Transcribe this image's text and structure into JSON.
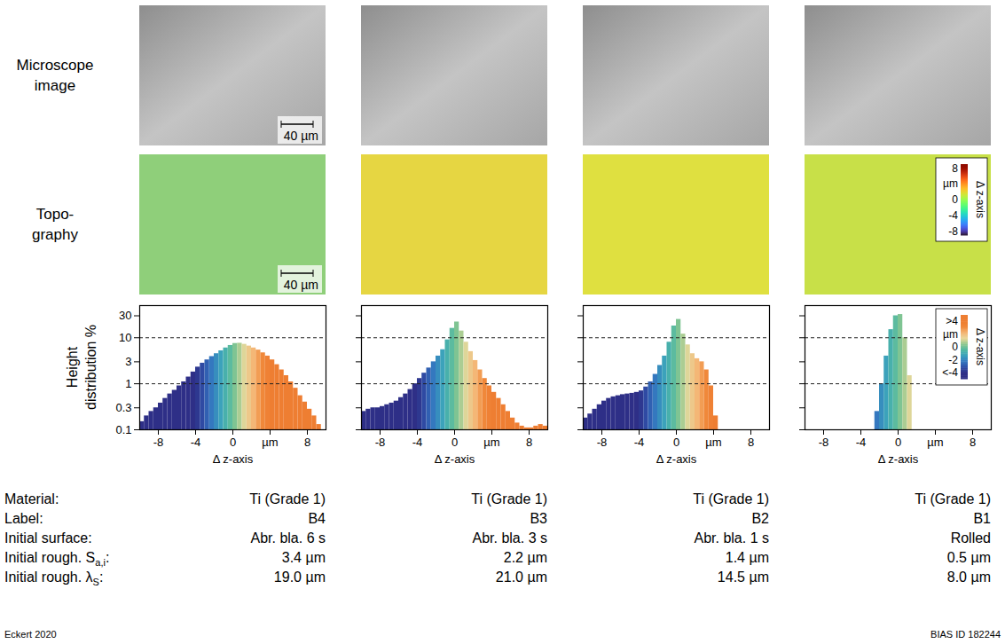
{
  "chart_data": [
    {
      "type": "histogram",
      "label": "B4",
      "bins": [
        -10,
        -9.5,
        -9,
        -8.5,
        -8,
        -7.5,
        -7,
        -6.5,
        -6,
        -5.5,
        -5,
        -4.5,
        -4,
        -3.5,
        -3,
        -2.5,
        -2,
        -1.5,
        -1,
        -0.5,
        0,
        0.5,
        1,
        1.5,
        2,
        2.5,
        3,
        3.5,
        4,
        4.5,
        5,
        5.5,
        6,
        6.5,
        7,
        7.5,
        8,
        8.5,
        9,
        9.5,
        10
      ],
      "counts": [
        0.15,
        0.2,
        0.25,
        0.3,
        0.38,
        0.48,
        0.6,
        0.72,
        0.9,
        1.1,
        1.4,
        1.8,
        2.3,
        2.8,
        3.3,
        3.9,
        4.5,
        5.2,
        6,
        6.8,
        7.5,
        7.6,
        7.2,
        6.6,
        6,
        5.4,
        4.7,
        4,
        3.3,
        2.6,
        2,
        1.5,
        1.1,
        0.8,
        0.55,
        0.4,
        0.28,
        0.2,
        0.13,
        null
      ],
      "xlim": [
        -10,
        10
      ],
      "xticks": [
        -8,
        -4,
        0,
        {
          "value": 4,
          "label": "µm"
        },
        8
      ],
      "x_label": "Δ z-axis",
      "ylim": [
        0.1,
        50
      ],
      "yticks": [
        0.1,
        0.3,
        1,
        3,
        10,
        30
      ],
      "y_label": "Height distribution %",
      "log": "y",
      "reference_lines": [
        1,
        10
      ]
    },
    {
      "type": "histogram",
      "label": "B3",
      "bins": [
        -10,
        -9.5,
        -9,
        -8.5,
        -8,
        -7.5,
        -7,
        -6.5,
        -6,
        -5.5,
        -5,
        -4.5,
        -4,
        -3.5,
        -3,
        -2.5,
        -2,
        -1.5,
        -1,
        -0.5,
        0,
        0.5,
        1,
        1.5,
        2,
        2.5,
        3,
        3.5,
        4,
        4.5,
        5,
        5.5,
        6,
        6.5,
        7,
        7.5,
        8,
        8.5,
        9,
        9.5,
        10
      ],
      "counts": [
        0.25,
        0.28,
        0.3,
        0.3,
        0.32,
        0.35,
        0.38,
        0.42,
        0.5,
        0.6,
        0.75,
        1,
        1.3,
        1.7,
        2.2,
        3,
        4,
        5.5,
        9,
        16,
        22,
        14,
        8,
        5,
        3.2,
        2,
        1.3,
        0.9,
        0.65,
        0.48,
        0.35,
        0.25,
        0.18,
        0.14,
        0.12,
        0.11,
        0.11,
        0.12,
        0.13,
        0.12
      ],
      "xlim": [
        -10,
        10
      ],
      "xticks": [
        -8,
        -4,
        0,
        {
          "value": 4,
          "label": "µm"
        },
        8
      ],
      "x_label": "Δ z-axis",
      "ylim": [
        0.1,
        50
      ],
      "yticks": [
        0.1,
        0.3,
        1,
        3,
        10,
        30
      ],
      "log": "y",
      "reference_lines": [
        1,
        10
      ],
      "tick_labels": "x"
    },
    {
      "type": "histogram",
      "label": "B2",
      "bins": [
        -10,
        -9.5,
        -9,
        -8.5,
        -8,
        -7.5,
        -7,
        -6.5,
        -6,
        -5.5,
        -5,
        -4.5,
        -4,
        -3.5,
        -3,
        -2.5,
        -2,
        -1.5,
        -1,
        -0.5,
        0,
        0.5,
        1,
        1.5,
        2,
        2.5,
        3,
        3.5,
        4,
        4.5,
        5,
        5.5,
        6,
        6.5,
        7,
        7.5,
        8,
        8.5,
        9,
        9.5,
        10
      ],
      "counts": [
        0.18,
        0.22,
        0.28,
        0.35,
        0.42,
        0.48,
        0.52,
        0.55,
        0.58,
        0.6,
        0.62,
        0.65,
        0.7,
        0.85,
        1.1,
        1.6,
        2.5,
        4,
        8,
        18,
        25,
        12,
        7,
        4.5,
        3.5,
        3,
        2,
        0.9,
        0.2,
        null,
        null,
        null,
        null,
        null,
        null,
        null,
        null,
        null,
        null,
        null
      ],
      "xlim": [
        -10,
        10
      ],
      "xticks": [
        -8,
        -4,
        0,
        {
          "value": 4,
          "label": "µm"
        },
        8
      ],
      "x_label": "Δ z-axis",
      "ylim": [
        0.1,
        50
      ],
      "yticks": [
        0.1,
        0.3,
        1,
        3,
        10,
        30
      ],
      "log": "y",
      "reference_lines": [
        1,
        10
      ],
      "tick_labels": "x"
    },
    {
      "type": "histogram",
      "label": "B1",
      "bins": [
        -10,
        -9.5,
        -9,
        -8.5,
        -8,
        -7.5,
        -7,
        -6.5,
        -6,
        -5.5,
        -5,
        -4.5,
        -4,
        -3.5,
        -3,
        -2.5,
        -2,
        -1.5,
        -1,
        -0.5,
        0,
        0.5,
        1,
        1.5,
        2,
        2.5,
        3,
        3.5,
        4,
        4.5,
        5,
        5.5,
        6,
        6.5,
        7,
        7.5,
        8,
        8.5,
        9,
        9.5,
        10
      ],
      "counts": [
        null,
        null,
        null,
        null,
        null,
        null,
        null,
        null,
        null,
        null,
        null,
        null,
        null,
        null,
        null,
        0.25,
        1,
        4,
        15,
        30,
        32,
        10,
        1.5,
        null,
        null,
        null,
        null,
        null,
        null,
        null,
        null,
        null,
        null,
        null,
        null,
        null,
        null,
        null,
        null,
        null
      ],
      "xlim": [
        -10,
        10
      ],
      "xticks": [
        -8,
        -4,
        0,
        {
          "value": 4,
          "label": "µm"
        },
        8
      ],
      "x_label": "Δ z-axis",
      "ylim": [
        0.1,
        50
      ],
      "yticks": [
        0.1,
        0.3,
        1,
        3,
        10,
        30
      ],
      "log": "y",
      "reference_lines": [
        1,
        10
      ],
      "tick_labels": "x"
    }
  ],
  "figure": {
    "row_labels": {
      "microscope": [
        "Microscope",
        "image"
      ],
      "topography": [
        "Topo-",
        "graphy"
      ]
    },
    "scale_bar": "40 µm",
    "topography_colorbar": {
      "lim": [
        -9,
        9
      ],
      "ticks": [
        8,
        {
          "value": 4,
          "label": "µm"
        },
        0,
        -4,
        -8
      ],
      "label": "Δ z-axis"
    },
    "histogram_colorbar": {
      "lim": [
        -5,
        5
      ],
      "ticks": [
        {
          "value": 4,
          "label": ">4"
        },
        {
          "value": 2,
          "label": "µm"
        },
        0,
        -2,
        {
          "value": -4,
          "label": "<-4"
        }
      ],
      "label": "Δ z-axis"
    },
    "table": {
      "row_labels": [
        "Material:",
        "Label:",
        "Initial surface:",
        {
          "text": "Initial rough. S",
          "sub": "a,i",
          "end": ":"
        },
        {
          "text": "Initial rough. λ",
          "sub": "S",
          "end": ":"
        }
      ],
      "columns": [
        [
          "Ti (Grade 1)",
          "B4",
          "Abr. bla. 6 s",
          "3.4 µm",
          "19.0 µm"
        ],
        [
          "Ti (Grade 1)",
          "B3",
          "Abr. bla. 3 s",
          "2.2 µm",
          "21.0 µm"
        ],
        [
          "Ti (Grade 1)",
          "B2",
          "Abr. bla. 1 s",
          "1.4 µm",
          "14.5 µm"
        ],
        [
          "Ti (Grade 1)",
          "B1",
          "Rolled",
          "0.5 µm",
          "8.0 µm"
        ]
      ]
    },
    "credits": {
      "left": "Eckert 2020",
      "right": "BIAS ID 182244"
    }
  }
}
